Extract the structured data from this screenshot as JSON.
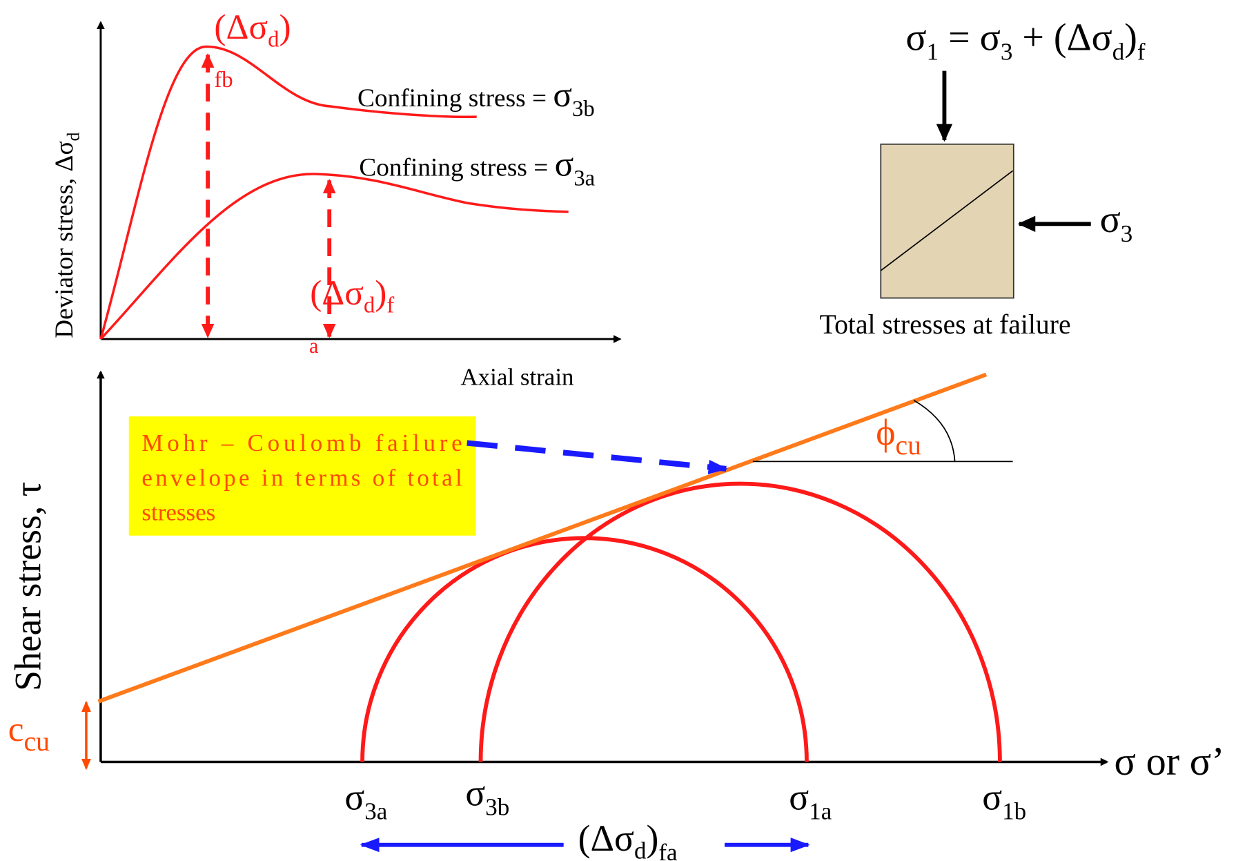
{
  "top_chart": {
    "y_label": [
      "Deviator stress, Δσ",
      "d"
    ],
    "x_label": "Axial strain",
    "peak_b": [
      "(Δσ",
      "d",
      ")"
    ],
    "peak_b_sub": "fb",
    "curve_b": [
      "Confining stress = ",
      "σ",
      "3b"
    ],
    "curve_a": [
      "Confining stress = ",
      "σ",
      "3a"
    ],
    "peak_a": [
      "(Δσ",
      "d",
      ")",
      "f"
    ],
    "peak_a_sub": "a"
  },
  "specimen": {
    "top": [
      "σ",
      "1",
      " = σ",
      "3",
      " + (Δσ",
      "d",
      ")",
      "f"
    ],
    "side": [
      "σ",
      "3"
    ],
    "caption": "Total stresses at failure"
  },
  "mohr": {
    "y_label": "Shear stress, τ",
    "intercept": [
      "c",
      "cu"
    ],
    "envelope_note": [
      "Mohr – Coulomb failure",
      "envelope in terms of total",
      "stresses"
    ],
    "angle": [
      "ϕ",
      "cu"
    ],
    "x_label": "σ or σ’",
    "s3a": [
      "σ",
      "3a"
    ],
    "s3b": [
      "σ",
      "3b"
    ],
    "s1a": [
      "σ",
      "1a"
    ],
    "s1b": [
      "σ",
      "1b"
    ],
    "diameter": [
      "(Δσ",
      "d",
      ")",
      "fa"
    ]
  }
}
